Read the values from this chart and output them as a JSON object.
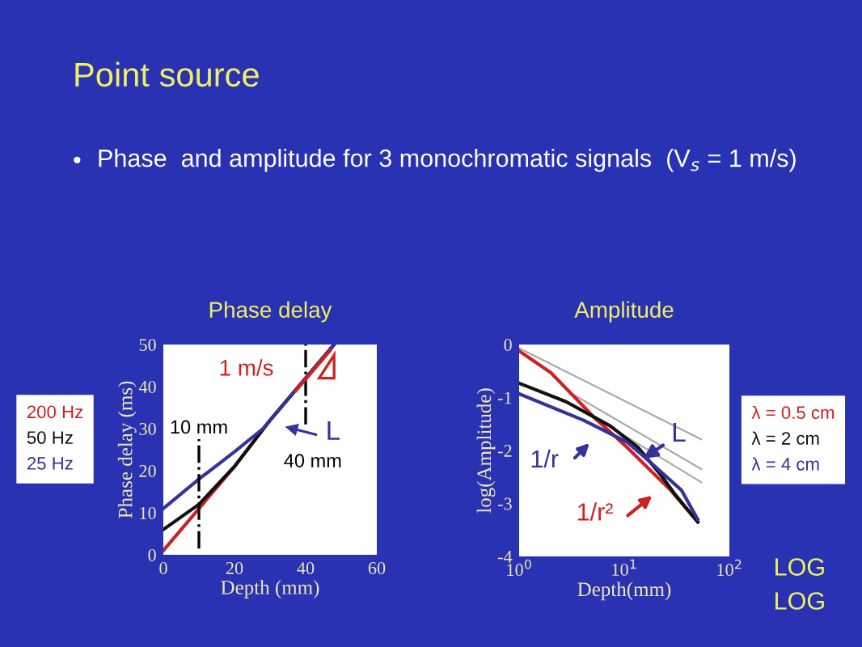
{
  "chart_data": [
    {
      "type": "line",
      "title": "Phase delay",
      "xlabel": "Depth (mm)",
      "ylabel": "Phase delay (ms)",
      "xlim": [
        0,
        60
      ],
      "ylim": [
        0,
        50
      ],
      "xticks": [
        0,
        20,
        40,
        60
      ],
      "yticks": [
        0,
        10,
        20,
        30,
        40,
        50
      ],
      "grid": false,
      "legend": "left",
      "marker": "none",
      "line_style": "solid",
      "annotations": [
        "Point source",
        "•",
        "Phase  and amplitude for 3 monochromatic signals  (V$_{s}$ = 1 m/s)",
        "1 m/s",
        "L"
      ],
      "ref_lines": [
        {
          "axis": "x",
          "value": 10,
          "label": "10 mm",
          "color": "#000000",
          "line_style": "dashdot"
        },
        {
          "axis": "x",
          "value": 40,
          "label": "40 mm",
          "color": "#000000",
          "line_style": "dashdot"
        }
      ],
      "series": [
        {
          "name": "200 Hz",
          "color": "#cc2222",
          "x": [
            0,
            10,
            20,
            30,
            40,
            48
          ],
          "values": [
            1,
            11,
            21,
            32,
            42,
            50
          ]
        },
        {
          "name": "50 Hz",
          "color": "#111111",
          "x": [
            0,
            10,
            20,
            30,
            40,
            48
          ],
          "values": [
            6,
            12,
            21,
            32,
            42,
            50
          ]
        },
        {
          "name": "25 Hz",
          "color": "#333399",
          "x": [
            0,
            10,
            20,
            28,
            30,
            40,
            48
          ],
          "values": [
            11,
            18,
            24.5,
            30,
            32,
            42,
            50
          ]
        }
      ]
    },
    {
      "type": "line",
      "title": "Amplitude",
      "xlabel": "Depth(mm)",
      "ylabel": "log(Amplitude)",
      "log": "x",
      "xlim": [
        1,
        100
      ],
      "ylim": [
        -4,
        0
      ],
      "xticks": [
        {
          "value": 1,
          "label": "10$^{0}$"
        },
        {
          "value": 10,
          "label": "10$^{1}$"
        },
        {
          "value": 100,
          "label": "10$^{2}$"
        }
      ],
      "yticks": [
        {
          "value": -4,
          "label": "-4"
        },
        {
          "value": -3,
          "label": "-3"
        },
        {
          "value": -2,
          "label": "-2"
        },
        {
          "value": -1,
          "label": "-1"
        },
        {
          "value": 0,
          "label": "0"
        }
      ],
      "grid": false,
      "legend": "right",
      "marker": "none",
      "line_style": "solid",
      "annotations": [
        "1/r",
        "1/r²",
        {
          "text": "L",
          "x": 14,
          "y": -2.2
        },
        "LOG",
        "LOG"
      ],
      "series": [
        {
          "color": "#aaaaaa",
          "x": [
            1,
            54
          ],
          "values": [
            -0.07,
            -1.79
          ]
        },
        {
          "color": "#aaaaaa",
          "x": [
            3,
            54
          ],
          "values": [
            -0.9,
            -2.35
          ]
        },
        {
          "color": "#aaaaaa",
          "x": [
            5,
            54
          ],
          "values": [
            -1.35,
            -2.6
          ]
        },
        {
          "name": "λ = 0.5 cm",
          "color": "#cc2222",
          "x": [
            1,
            2,
            5.2,
            10.6,
            17,
            27.6,
            50
          ],
          "values": [
            -0.12,
            -0.53,
            -1.38,
            -1.94,
            -2.34,
            -2.75,
            -3.35
          ]
        },
        {
          "name": "λ = 2 cm",
          "color": "#111111",
          "x": [
            1,
            2.8,
            7.4,
            13.5,
            21.8,
            31,
            50
          ],
          "values": [
            -0.73,
            -1.08,
            -1.54,
            -1.94,
            -2.44,
            -2.85,
            -3.35
          ]
        },
        {
          "name": "λ = 4 cm",
          "color": "#333399",
          "x": [
            1,
            4.1,
            10.6,
            17,
            35,
            50
          ],
          "values": [
            -0.93,
            -1.43,
            -1.84,
            -2.19,
            -2.75,
            -3.3
          ]
        }
      ]
    }
  ]
}
